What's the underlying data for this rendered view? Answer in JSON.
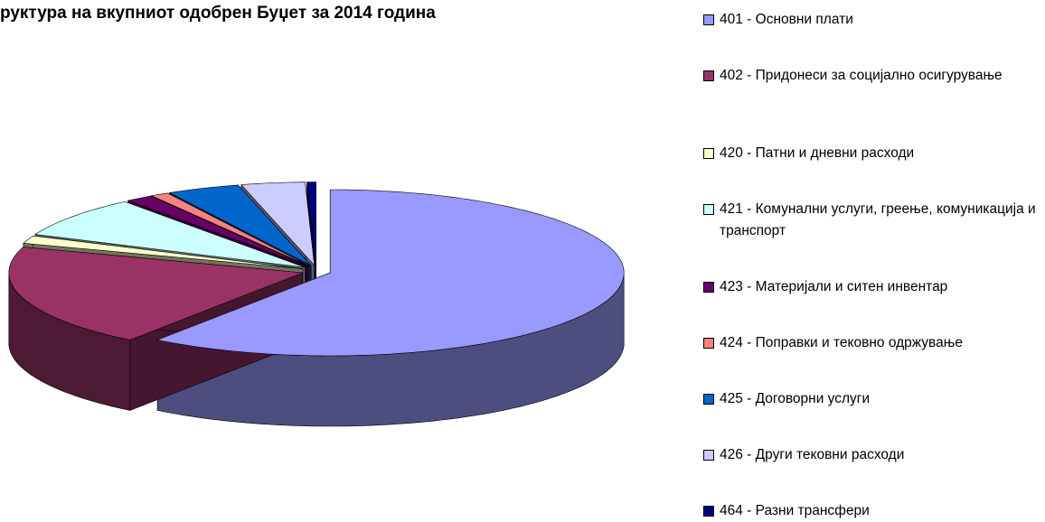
{
  "chart_data": {
    "type": "pie3d",
    "title": "руктура на вкупниот одобрен Буџет за 2014 година",
    "categories": [
      "401 - Основни плати",
      "402 - Придонеси за социјално осигурување",
      "420 - Патни и дневни расходи",
      "421 - Комунални услуги, греење, комуникација и транспорт",
      "423 - Материјали и ситен инвентар",
      "424 - Поправки и тековно одржување",
      "425 - Договорни услуги",
      "426 - Други тековни расходи",
      "464 - Разни трансфери"
    ],
    "values": [
      60,
      20,
      1.5,
      8,
      1.5,
      1,
      4,
      3.5,
      0.5
    ],
    "colors": [
      "#9999ff",
      "#993366",
      "#ffffcc",
      "#ccffff",
      "#660066",
      "#ff8080",
      "#0066cc",
      "#ccccff",
      "#000080"
    ],
    "legend": "right"
  }
}
